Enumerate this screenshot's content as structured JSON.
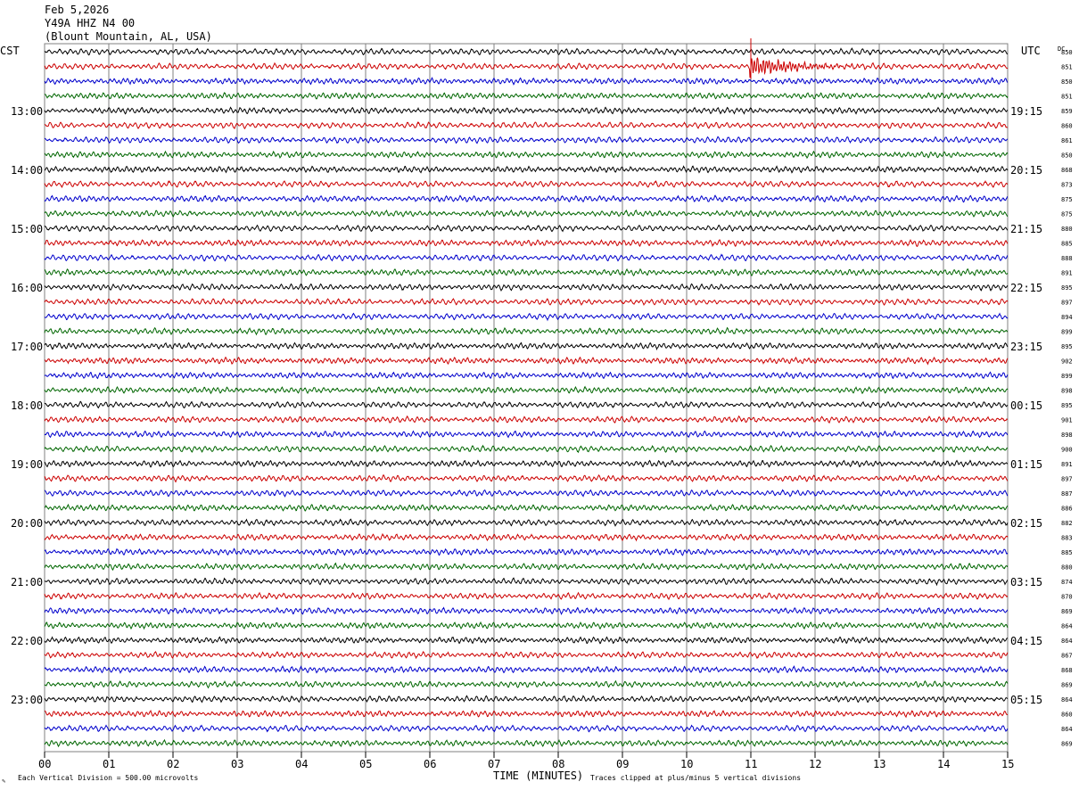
{
  "header": {
    "date": "Feb 5,2026",
    "station": "Y49A HHZ N4 00",
    "location": "(Blount Mountain, AL, USA)"
  },
  "left_tz": "CST",
  "right_tz": "UTC",
  "dc_label": "DC",
  "footer": {
    "scale_note": "Each Vertical Division =  500.00 microvolts",
    "xlabel": "TIME (MINUTES)",
    "clip_note": "Traces clipped at plus/minus 5 vertical divisions"
  },
  "colors": {
    "trace": [
      "#000000",
      "#cc0000",
      "#0000cc",
      "#006600"
    ],
    "grid": "#808080"
  },
  "chart_data": {
    "type": "line",
    "title": "",
    "xlabel": "TIME (MINUTES)",
    "ylabel": "",
    "x_range": [
      0,
      15
    ],
    "x_ticks": [
      "00",
      "01",
      "02",
      "03",
      "04",
      "05",
      "06",
      "07",
      "08",
      "09",
      "10",
      "11",
      "12",
      "13",
      "14",
      "15"
    ],
    "trace_minutes": 15,
    "hour_labels_left": [
      "13:00",
      "14:00",
      "15:00",
      "16:00",
      "17:00",
      "18:00",
      "19:00",
      "20:00",
      "21:00",
      "22:00",
      "23:00"
    ],
    "hour_labels_right": [
      "19:15",
      "20:15",
      "21:15",
      "22:15",
      "23:15",
      "00:15",
      "01:15",
      "02:15",
      "03:15",
      "04:15",
      "05:15"
    ],
    "dc_values": [
      850,
      851,
      850,
      851,
      859,
      860,
      861,
      850,
      868,
      873,
      875,
      875,
      880,
      885,
      888,
      891,
      895,
      897,
      894,
      899,
      895,
      902,
      899,
      898,
      895,
      901,
      898,
      900,
      891,
      897,
      887,
      886,
      882,
      883,
      885,
      880,
      874,
      870,
      869,
      864,
      864,
      867,
      868,
      869,
      864,
      860,
      864,
      869
    ],
    "event": {
      "trace_index": 1,
      "start_minute": 10.98,
      "peak_minute": 11.0,
      "end_minute": 13.1,
      "description_label": ""
    }
  }
}
